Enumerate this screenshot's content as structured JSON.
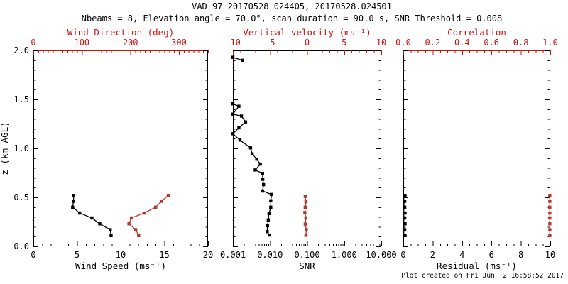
{
  "header": {
    "title": "VAD_97_20170528_024405, 20170528.024501",
    "subtitle": "Nbeams = 8, Elevation angle = 70.0°, scan duration = 90.0 s, SNR Threshold = 0.008"
  },
  "footer": {
    "created": "Plot created on Fri Jun  2 16:58:52 2017"
  },
  "colors": {
    "axis_red": "#cc1111",
    "series_red": "#b5372b",
    "black": "#000000",
    "background": "#ffffff"
  },
  "chart_data": {
    "type": "line",
    "orientation": "vertical-profile",
    "y_axis": {
      "label": "z (km AGL)",
      "lim": [
        0,
        2
      ],
      "ticks": [
        0.0,
        0.5,
        1.0,
        1.5,
        2.0
      ],
      "tick_labels": [
        "0.0",
        "0.5",
        "1.0",
        "1.5",
        "2.0"
      ],
      "minor_step": 0.1
    },
    "panels": [
      {
        "id": "wind",
        "show_ytick_labels": true,
        "bottom_axis": {
          "label": "Wind Speed (ms⁻¹)",
          "lim": [
            0,
            20
          ],
          "ticks": [
            0,
            5,
            10,
            15,
            20
          ],
          "tick_labels": [
            "0",
            "5",
            "10",
            "15",
            "20"
          ],
          "minor_step": 1,
          "color": "#000000",
          "line_color": "#000000"
        },
        "top_axis": {
          "label": "Wind Direction (deg)",
          "lim": [
            0,
            360
          ],
          "ticks": [
            0,
            100,
            200,
            300
          ],
          "tick_labels": [
            "0",
            "100",
            "200",
            "300"
          ],
          "minor_step": 10,
          "color": "#cc1111",
          "line_color": "#cc1111"
        },
        "series": [
          {
            "name": "wind-speed",
            "axis": "bottom",
            "color": "#000000",
            "z": [
              0.52,
              0.46,
              0.4,
              0.34,
              0.29,
              0.23,
              0.17,
              0.11
            ],
            "values": [
              4.6,
              4.6,
              4.5,
              5.3,
              6.7,
              7.6,
              8.8,
              8.9
            ]
          },
          {
            "name": "wind-direction",
            "axis": "top",
            "color": "#b5372b",
            "z": [
              0.52,
              0.46,
              0.4,
              0.34,
              0.29,
              0.23,
              0.17,
              0.11
            ],
            "values": [
              278,
              264,
              252,
              228,
              202,
              197,
              211,
              217
            ]
          }
        ]
      },
      {
        "id": "snr",
        "show_ytick_labels": false,
        "bottom_axis": {
          "label": "SNR",
          "scale": "log",
          "lim": [
            0.001,
            10
          ],
          "ticks": [
            0.001,
            0.01,
            0.1,
            1,
            10
          ],
          "tick_labels": [
            "0.001",
            "0.010",
            "0.100",
            "1.000",
            "10.000"
          ],
          "color": "#000000",
          "line_color": "#000000"
        },
        "top_axis": {
          "label": "Vertical velocity (ms⁻¹)",
          "lim": [
            -10,
            10
          ],
          "ticks": [
            -10,
            -5,
            0,
            5,
            10
          ],
          "tick_labels": [
            "-10",
            "-5",
            "0",
            "5",
            "10"
          ],
          "minor_step": 1,
          "color": "#cc1111",
          "line_color": "#000000"
        },
        "refline": {
          "axis": "top",
          "value": 0,
          "style": "dotted",
          "color": "#cc1111"
        },
        "series": [
          {
            "name": "snr",
            "axis": "bottom",
            "color": "#000000",
            "segments": [
              {
                "z": [
                  1.93,
                  1.9
                ],
                "values": [
                  0.001,
                  0.0018
                ]
              },
              {
                "z": [
                  1.455,
                  1.43,
                  1.35,
                  1.33,
                  1.27,
                  1.21,
                  1.15,
                  1.085,
                  1.005,
                  0.945,
                  0.89,
                  0.84,
                  0.78,
                  0.745,
                  0.685,
                  0.63,
                  0.565,
                  0.53,
                  0.465,
                  0.4,
                  0.335,
                  0.27,
                  0.21,
                  0.15,
                  0.115
                ],
                "values": [
                  0.001,
                  0.00145,
                  0.001,
                  0.0017,
                  0.0022,
                  0.00145,
                  0.001,
                  0.00155,
                  0.003,
                  0.0033,
                  0.0044,
                  0.0055,
                  0.004,
                  0.0063,
                  0.0064,
                  0.0067,
                  0.0063,
                  0.011,
                  0.0105,
                  0.0105,
                  0.0094,
                  0.009,
                  0.0086,
                  0.0084,
                  0.0097
                ]
              }
            ]
          },
          {
            "name": "vertical-velocity",
            "axis": "top",
            "color": "#b5372b",
            "z": [
              0.51,
              0.455,
              0.4,
              0.345,
              0.29,
              0.228,
              0.17,
              0.112
            ],
            "values": [
              -0.25,
              -0.15,
              -0.25,
              -0.3,
              -0.15,
              -0.25,
              -0.1,
              -0.15
            ]
          }
        ]
      },
      {
        "id": "residual",
        "show_ytick_labels": false,
        "bottom_axis": {
          "label": "Residual (ms⁻¹)",
          "lim": [
            0,
            10
          ],
          "ticks": [
            0,
            2,
            4,
            6,
            8,
            10
          ],
          "tick_labels": [
            "0",
            "2",
            "4",
            "6",
            "8",
            "10"
          ],
          "minor_step": 0.5,
          "color": "#000000",
          "line_color": "#000000"
        },
        "top_axis": {
          "label": "Correlation",
          "lim": [
            0,
            1
          ],
          "ticks": [
            0,
            0.2,
            0.4,
            0.6,
            0.8,
            1
          ],
          "tick_labels": [
            "0.0",
            "0.2",
            "0.4",
            "0.6",
            "0.8",
            "1.0"
          ],
          "minor_step": 0.05,
          "color": "#cc1111",
          "line_color": "#cc1111"
        },
        "series": [
          {
            "name": "residual",
            "axis": "bottom",
            "color": "#000000",
            "z": [
              0.52,
              0.46,
              0.4,
              0.34,
              0.29,
              0.23,
              0.17,
              0.11
            ],
            "values": [
              0.12,
              0.1,
              0.1,
              0.12,
              0.1,
              0.12,
              0.1,
              0.12
            ]
          },
          {
            "name": "correlation",
            "axis": "top",
            "color": "#b5372b",
            "z": [
              0.52,
              0.46,
              0.4,
              0.34,
              0.29,
              0.23,
              0.17,
              0.11
            ],
            "values": [
              0.997,
              0.997,
              0.997,
              0.997,
              0.997,
              0.997,
              0.997,
              0.997
            ]
          }
        ]
      }
    ]
  }
}
